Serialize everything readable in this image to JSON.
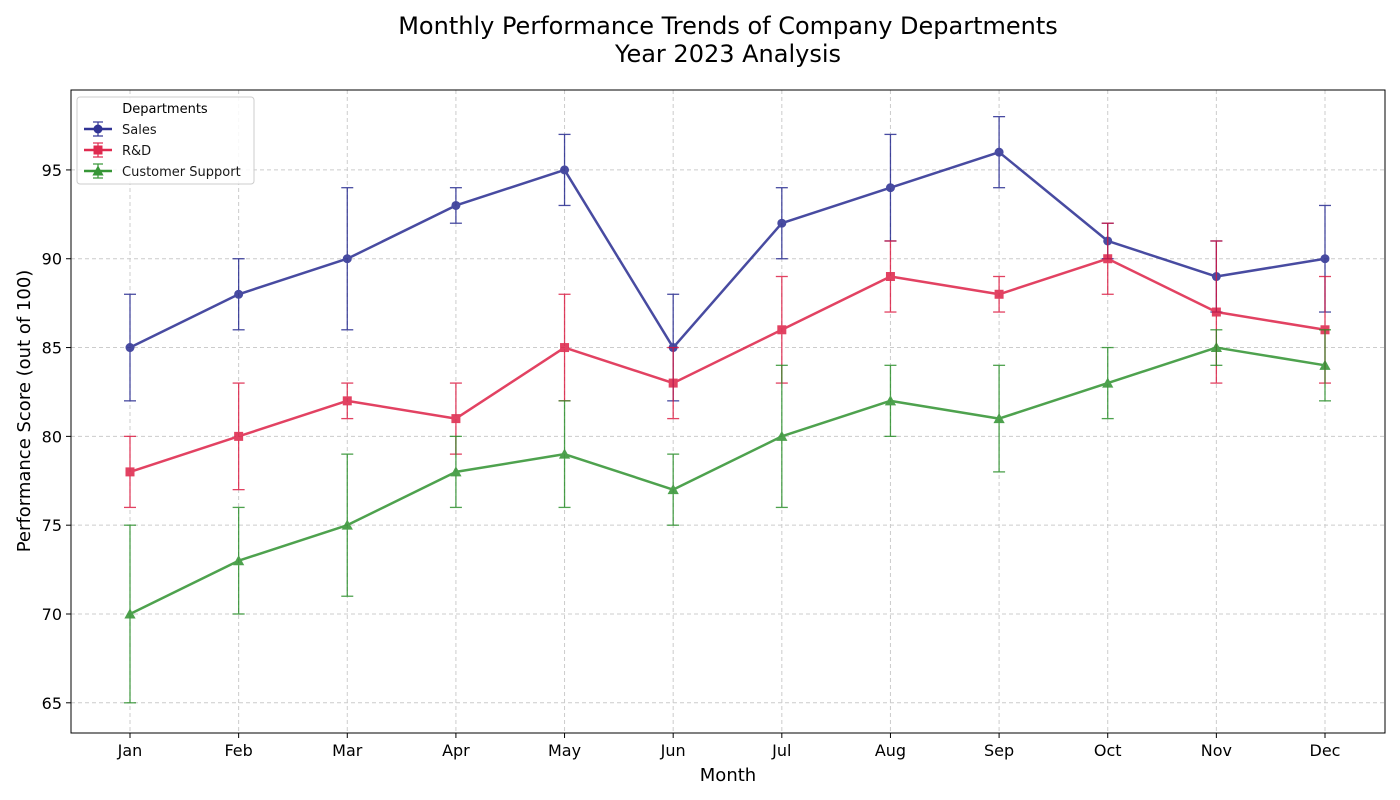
{
  "chart_data": {
    "type": "line",
    "title": "Monthly Performance Trends of Company Departments",
    "subtitle": "Year 2023 Analysis",
    "xlabel": "Month",
    "ylabel": "Performance Score (out of 100)",
    "ylim": [
      63.3,
      99.5
    ],
    "yticks": [
      65,
      70,
      75,
      80,
      85,
      90,
      95
    ],
    "grid": true,
    "legend_title": "Departments",
    "legend_position": "top-left",
    "categories": [
      "Jan",
      "Feb",
      "Mar",
      "Apr",
      "May",
      "Jun",
      "Jul",
      "Aug",
      "Sep",
      "Oct",
      "Nov",
      "Dec"
    ],
    "series": [
      {
        "name": "Sales",
        "color": "#1b1f8a",
        "marker": "circle",
        "values": [
          85,
          88,
          90,
          93,
          95,
          85,
          92,
          94,
          96,
          91,
          89,
          90
        ],
        "err_low": [
          82,
          86,
          86,
          92,
          93,
          82,
          90,
          91,
          94,
          90,
          87,
          87
        ],
        "err_high": [
          88,
          90,
          94,
          94,
          97,
          88,
          94,
          97,
          98,
          92,
          91,
          93
        ]
      },
      {
        "name": "R&D",
        "color": "#dc143c",
        "marker": "square",
        "values": [
          78,
          80,
          82,
          81,
          85,
          83,
          86,
          89,
          88,
          90,
          87,
          86
        ],
        "err_low": [
          76,
          77,
          81,
          79,
          82,
          81,
          83,
          87,
          87,
          88,
          83,
          83
        ],
        "err_high": [
          80,
          83,
          83,
          83,
          88,
          85,
          89,
          91,
          89,
          92,
          91,
          89
        ]
      },
      {
        "name": "Customer Support",
        "color": "#228b22",
        "marker": "triangle",
        "values": [
          70,
          73,
          75,
          78,
          79,
          77,
          80,
          82,
          81,
          83,
          85,
          84
        ],
        "err_low": [
          65,
          70,
          71,
          76,
          76,
          75,
          76,
          80,
          78,
          81,
          84,
          82
        ],
        "err_high": [
          75,
          76,
          79,
          80,
          82,
          79,
          84,
          84,
          84,
          85,
          86,
          86
        ]
      }
    ]
  }
}
